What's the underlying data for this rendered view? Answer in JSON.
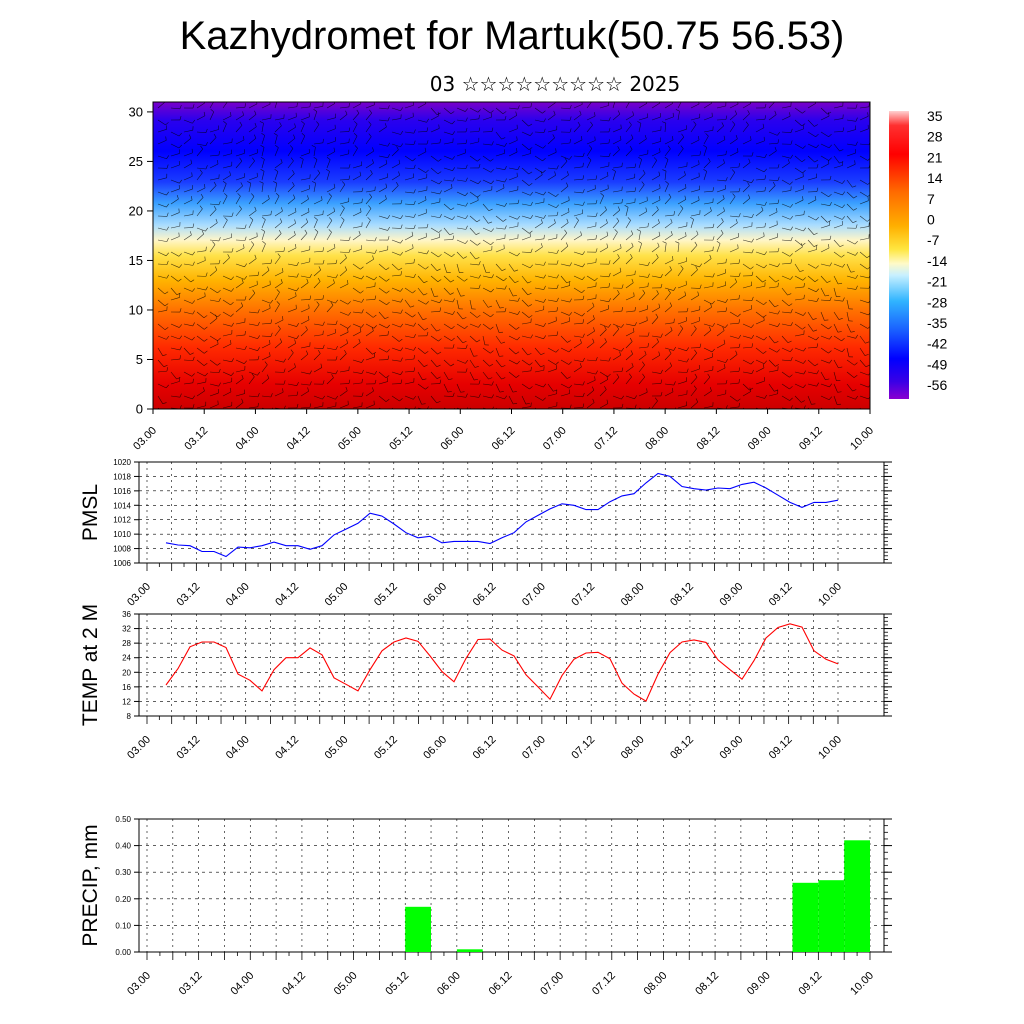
{
  "header": {
    "title": "Kazhydromet for Martuk(50.75 56.53)",
    "date_line": "03 ☆☆☆☆☆☆☆☆☆ 2025"
  },
  "time_ticks": [
    "03.00",
    "03.12",
    "04.00",
    "04.12",
    "05.00",
    "05.12",
    "06.00",
    "06.12",
    "07.00",
    "07.12",
    "08.00",
    "08.12",
    "09.00",
    "09.12",
    "10.00"
  ],
  "chart_data": [
    {
      "type": "heatmap",
      "title": "",
      "xlabel": "",
      "ylabel": "",
      "x_ticks": [
        "03.00",
        "03.12",
        "04.00",
        "04.12",
        "05.00",
        "05.12",
        "06.00",
        "06.12",
        "07.00",
        "07.12",
        "08.00",
        "08.12",
        "09.00",
        "09.12",
        "10.00"
      ],
      "y_ticks": [
        "0",
        "5",
        "10",
        "15",
        "20",
        "25",
        "30"
      ],
      "ylim": [
        0,
        31
      ],
      "colorbar_labels": [
        "35",
        "28",
        "21",
        "14",
        "7",
        "0",
        "-7",
        "-14",
        "-21",
        "-28",
        "-35",
        "-42",
        "-49",
        "-56"
      ],
      "colorbar_range": [
        -63,
        42
      ],
      "overlay": "wind barbs"
    },
    {
      "type": "line",
      "ylabel": "PMSL",
      "ylim": [
        1006,
        1020
      ],
      "y_ticks": [
        "1006",
        "1008",
        "1010",
        "1012",
        "1014",
        "1016",
        "1018",
        "1020"
      ],
      "x_ticks": [
        "03.00",
        "03.12",
        "04.00",
        "04.12",
        "05.00",
        "05.12",
        "06.00",
        "06.12",
        "07.00",
        "07.12",
        "08.00",
        "08.12",
        "09.00",
        "09.12",
        "10.00"
      ],
      "color": "#0000ff",
      "values": [
        1008.8,
        1008.5,
        1008.4,
        1007.6,
        1007.6,
        1006.9,
        1008.2,
        1008.1,
        1008.4,
        1008.9,
        1008.4,
        1008.4,
        1007.9,
        1008.4,
        1009.9,
        1010.7,
        1011.5,
        1012.9,
        1012.5,
        1011.4,
        1010.2,
        1009.5,
        1009.7,
        1008.8,
        1009.0,
        1009.0,
        1009.0,
        1008.7,
        1009.5,
        1010.2,
        1011.7,
        1012.6,
        1013.5,
        1014.2,
        1014.0,
        1013.4,
        1013.4,
        1014.5,
        1015.3,
        1015.6,
        1017.1,
        1018.4,
        1018.0,
        1016.6,
        1016.3,
        1016.1,
        1016.4,
        1016.3,
        1016.9,
        1017.2,
        1016.4,
        1015.4,
        1014.4,
        1013.7,
        1014.4,
        1014.4,
        1014.7
      ]
    },
    {
      "type": "line",
      "ylabel": "TEMP at 2 M",
      "ylim": [
        8,
        36
      ],
      "y_ticks": [
        "8",
        "12",
        "16",
        "20",
        "24",
        "28",
        "32",
        "36"
      ],
      "x_ticks": [
        "03.00",
        "03.12",
        "04.00",
        "04.12",
        "05.00",
        "05.12",
        "06.00",
        "06.12",
        "07.00",
        "07.12",
        "08.00",
        "08.12",
        "09.00",
        "09.12",
        "10.00"
      ],
      "color": "#ff0000",
      "values": [
        16.5,
        21.0,
        27.0,
        28.3,
        28.3,
        26.8,
        19.5,
        17.8,
        14.9,
        20.7,
        24.0,
        24.0,
        26.7,
        24.8,
        18.5,
        16.7,
        14.9,
        20.7,
        25.9,
        28.3,
        29.4,
        28.5,
        24.5,
        20.2,
        17.4,
        23.8,
        29.0,
        29.1,
        26.1,
        24.5,
        19.3,
        16.0,
        12.6,
        19.1,
        23.6,
        25.3,
        25.5,
        23.7,
        17.0,
        14.0,
        12.1,
        19.5,
        25.4,
        28.3,
        28.9,
        28.2,
        23.4,
        20.7,
        18.1,
        23.2,
        29.4,
        32.3,
        33.3,
        32.4,
        25.9,
        23.6,
        22.3
      ]
    },
    {
      "type": "bar",
      "ylabel": "PRECIP, mm",
      "ylim": [
        0,
        0.5
      ],
      "y_ticks": [
        "0.00",
        "0.10",
        "0.20",
        "0.30",
        "0.40",
        "0.50"
      ],
      "x_ticks": [
        "03.00",
        "03.12",
        "04.00",
        "04.12",
        "05.00",
        "05.12",
        "06.00",
        "06.12",
        "07.00",
        "07.12",
        "08.00",
        "08.12",
        "09.00",
        "09.12",
        "10.00"
      ],
      "color": "#00ff00",
      "bars": [
        {
          "t": 10.5,
          "value": 0.17
        },
        {
          "t": 12.5,
          "value": 0.01
        },
        {
          "t": 25.5,
          "value": 0.26
        },
        {
          "t": 26.5,
          "value": 0.27
        },
        {
          "t": 27.5,
          "value": 0.42
        }
      ]
    }
  ]
}
